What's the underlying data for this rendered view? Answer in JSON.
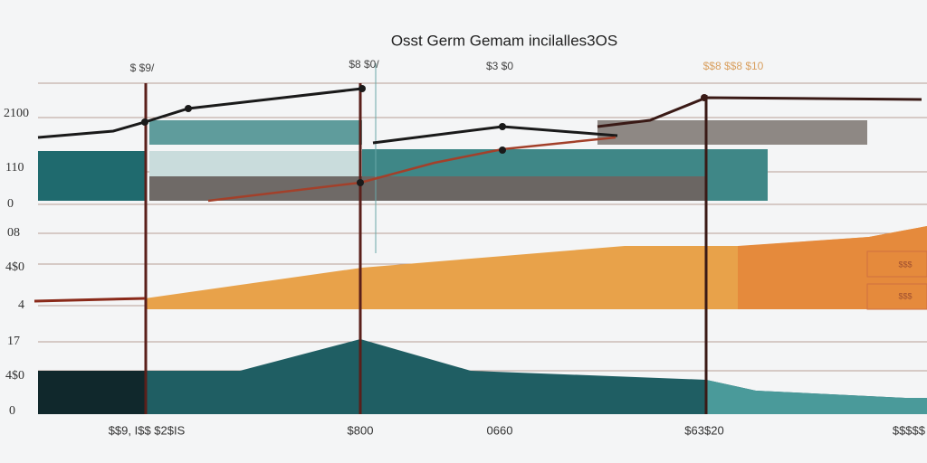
{
  "title": "Osst Germ Gemam incilalles3OS",
  "top_labels": [
    "$ $9/",
    "$8 $0/",
    "$3 $0",
    "$$8 $$8 $10"
  ],
  "left_labels": [
    "2100",
    "110",
    "0",
    "08",
    "4$0",
    "4",
    "17",
    "4$0",
    "0"
  ],
  "bottom_labels": [
    "$$9, I$$ $2$IS",
    "$800",
    "0660",
    "$63$20",
    "$$$$$"
  ],
  "right_labels": [
    "$$$",
    "$$$"
  ]
}
